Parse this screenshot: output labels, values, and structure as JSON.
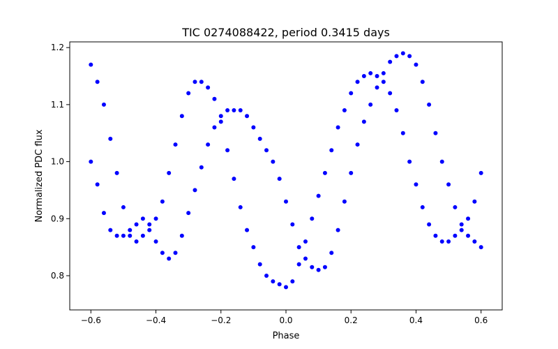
{
  "chart_data": {
    "type": "scatter",
    "title": "TIC 0274088422, period 0.3415 days",
    "xlabel": "Phase",
    "ylabel": "Normalized PDC flux",
    "xlim": [
      -0.665,
      0.665
    ],
    "ylim": [
      0.74,
      1.21
    ],
    "xticks": [
      -0.6,
      -0.4,
      -0.2,
      0.0,
      0.2,
      0.4,
      0.6
    ],
    "xtick_labels": [
      "−0.6",
      "−0.4",
      "−0.2",
      "0.0",
      "0.2",
      "0.4",
      "0.6"
    ],
    "yticks": [
      0.8,
      0.9,
      1.0,
      1.1,
      1.2
    ],
    "ytick_labels": [
      "0.8",
      "0.9",
      "1.0",
      "1.1",
      "1.2"
    ],
    "grid": false,
    "legend": "none",
    "marker_color": "#0000ff",
    "series": [
      {
        "x": [
          -0.6,
          -0.58,
          -0.56,
          -0.54,
          -0.52,
          -0.5,
          -0.48,
          -0.46,
          -0.44,
          -0.42,
          -0.4,
          -0.38,
          -0.36,
          -0.34,
          -0.32,
          -0.3,
          -0.28,
          -0.26,
          -0.24,
          -0.22,
          -0.2,
          -0.18,
          -0.16,
          -0.14,
          -0.12,
          -0.1,
          -0.08,
          -0.06,
          -0.04,
          -0.02,
          0.0,
          0.02,
          0.04,
          0.06,
          0.08,
          0.1,
          0.12,
          0.14,
          0.16,
          0.18,
          0.2,
          0.22,
          0.24,
          0.26,
          0.28,
          0.3,
          0.32,
          0.34,
          0.36,
          0.38,
          0.4,
          0.42,
          0.44,
          0.46,
          0.48,
          0.5,
          0.52,
          0.54,
          0.56,
          0.58,
          0.6
        ],
        "y": [
          1.17,
          1.14,
          1.1,
          1.04,
          0.98,
          0.92,
          0.88,
          0.86,
          0.87,
          0.89,
          0.9,
          0.93,
          0.98,
          1.03,
          1.08,
          1.12,
          1.14,
          1.14,
          1.13,
          1.11,
          1.07,
          1.02,
          0.97,
          0.92,
          0.88,
          0.85,
          0.82,
          0.8,
          0.79,
          0.785,
          0.78,
          0.79,
          0.82,
          0.86,
          0.9,
          0.94,
          0.98,
          1.02,
          1.06,
          1.09,
          1.12,
          1.14,
          1.15,
          1.155,
          1.15,
          1.14,
          1.12,
          1.09,
          1.05,
          1.0,
          0.96,
          0.92,
          0.89,
          0.87,
          0.86,
          0.86,
          0.87,
          0.88,
          0.9,
          0.93,
          0.98
        ]
      },
      {
        "x": [
          -0.6,
          -0.58,
          -0.56,
          -0.54,
          -0.52,
          -0.5,
          -0.48,
          -0.46,
          -0.44,
          -0.42,
          -0.4,
          -0.38,
          -0.36,
          -0.34,
          -0.32,
          -0.3,
          -0.28,
          -0.26,
          -0.24,
          -0.22,
          -0.2,
          -0.18,
          -0.16,
          -0.14,
          -0.12,
          -0.1,
          -0.08,
          -0.06,
          -0.04,
          -0.02,
          0.0,
          0.02,
          0.04,
          0.06,
          0.08,
          0.1,
          0.12,
          0.14,
          0.16,
          0.18,
          0.2,
          0.22,
          0.24,
          0.26,
          0.28,
          0.3,
          0.32,
          0.34,
          0.36,
          0.38,
          0.4,
          0.42,
          0.44,
          0.46,
          0.48,
          0.5,
          0.52,
          0.54,
          0.56,
          0.58,
          0.6
        ],
        "y": [
          1.0,
          0.96,
          0.91,
          0.88,
          0.87,
          0.87,
          0.87,
          0.89,
          0.9,
          0.88,
          0.86,
          0.84,
          0.83,
          0.84,
          0.87,
          0.91,
          0.95,
          0.99,
          1.03,
          1.06,
          1.08,
          1.09,
          1.09,
          1.09,
          1.08,
          1.06,
          1.04,
          1.02,
          1.0,
          0.97,
          0.93,
          0.89,
          0.85,
          0.83,
          0.815,
          0.81,
          0.815,
          0.84,
          0.88,
          0.93,
          0.98,
          1.03,
          1.07,
          1.1,
          1.13,
          1.155,
          1.175,
          1.185,
          1.19,
          1.185,
          1.17,
          1.14,
          1.1,
          1.05,
          1.0,
          0.96,
          0.92,
          0.89,
          0.87,
          0.86,
          0.85
        ]
      }
    ]
  }
}
